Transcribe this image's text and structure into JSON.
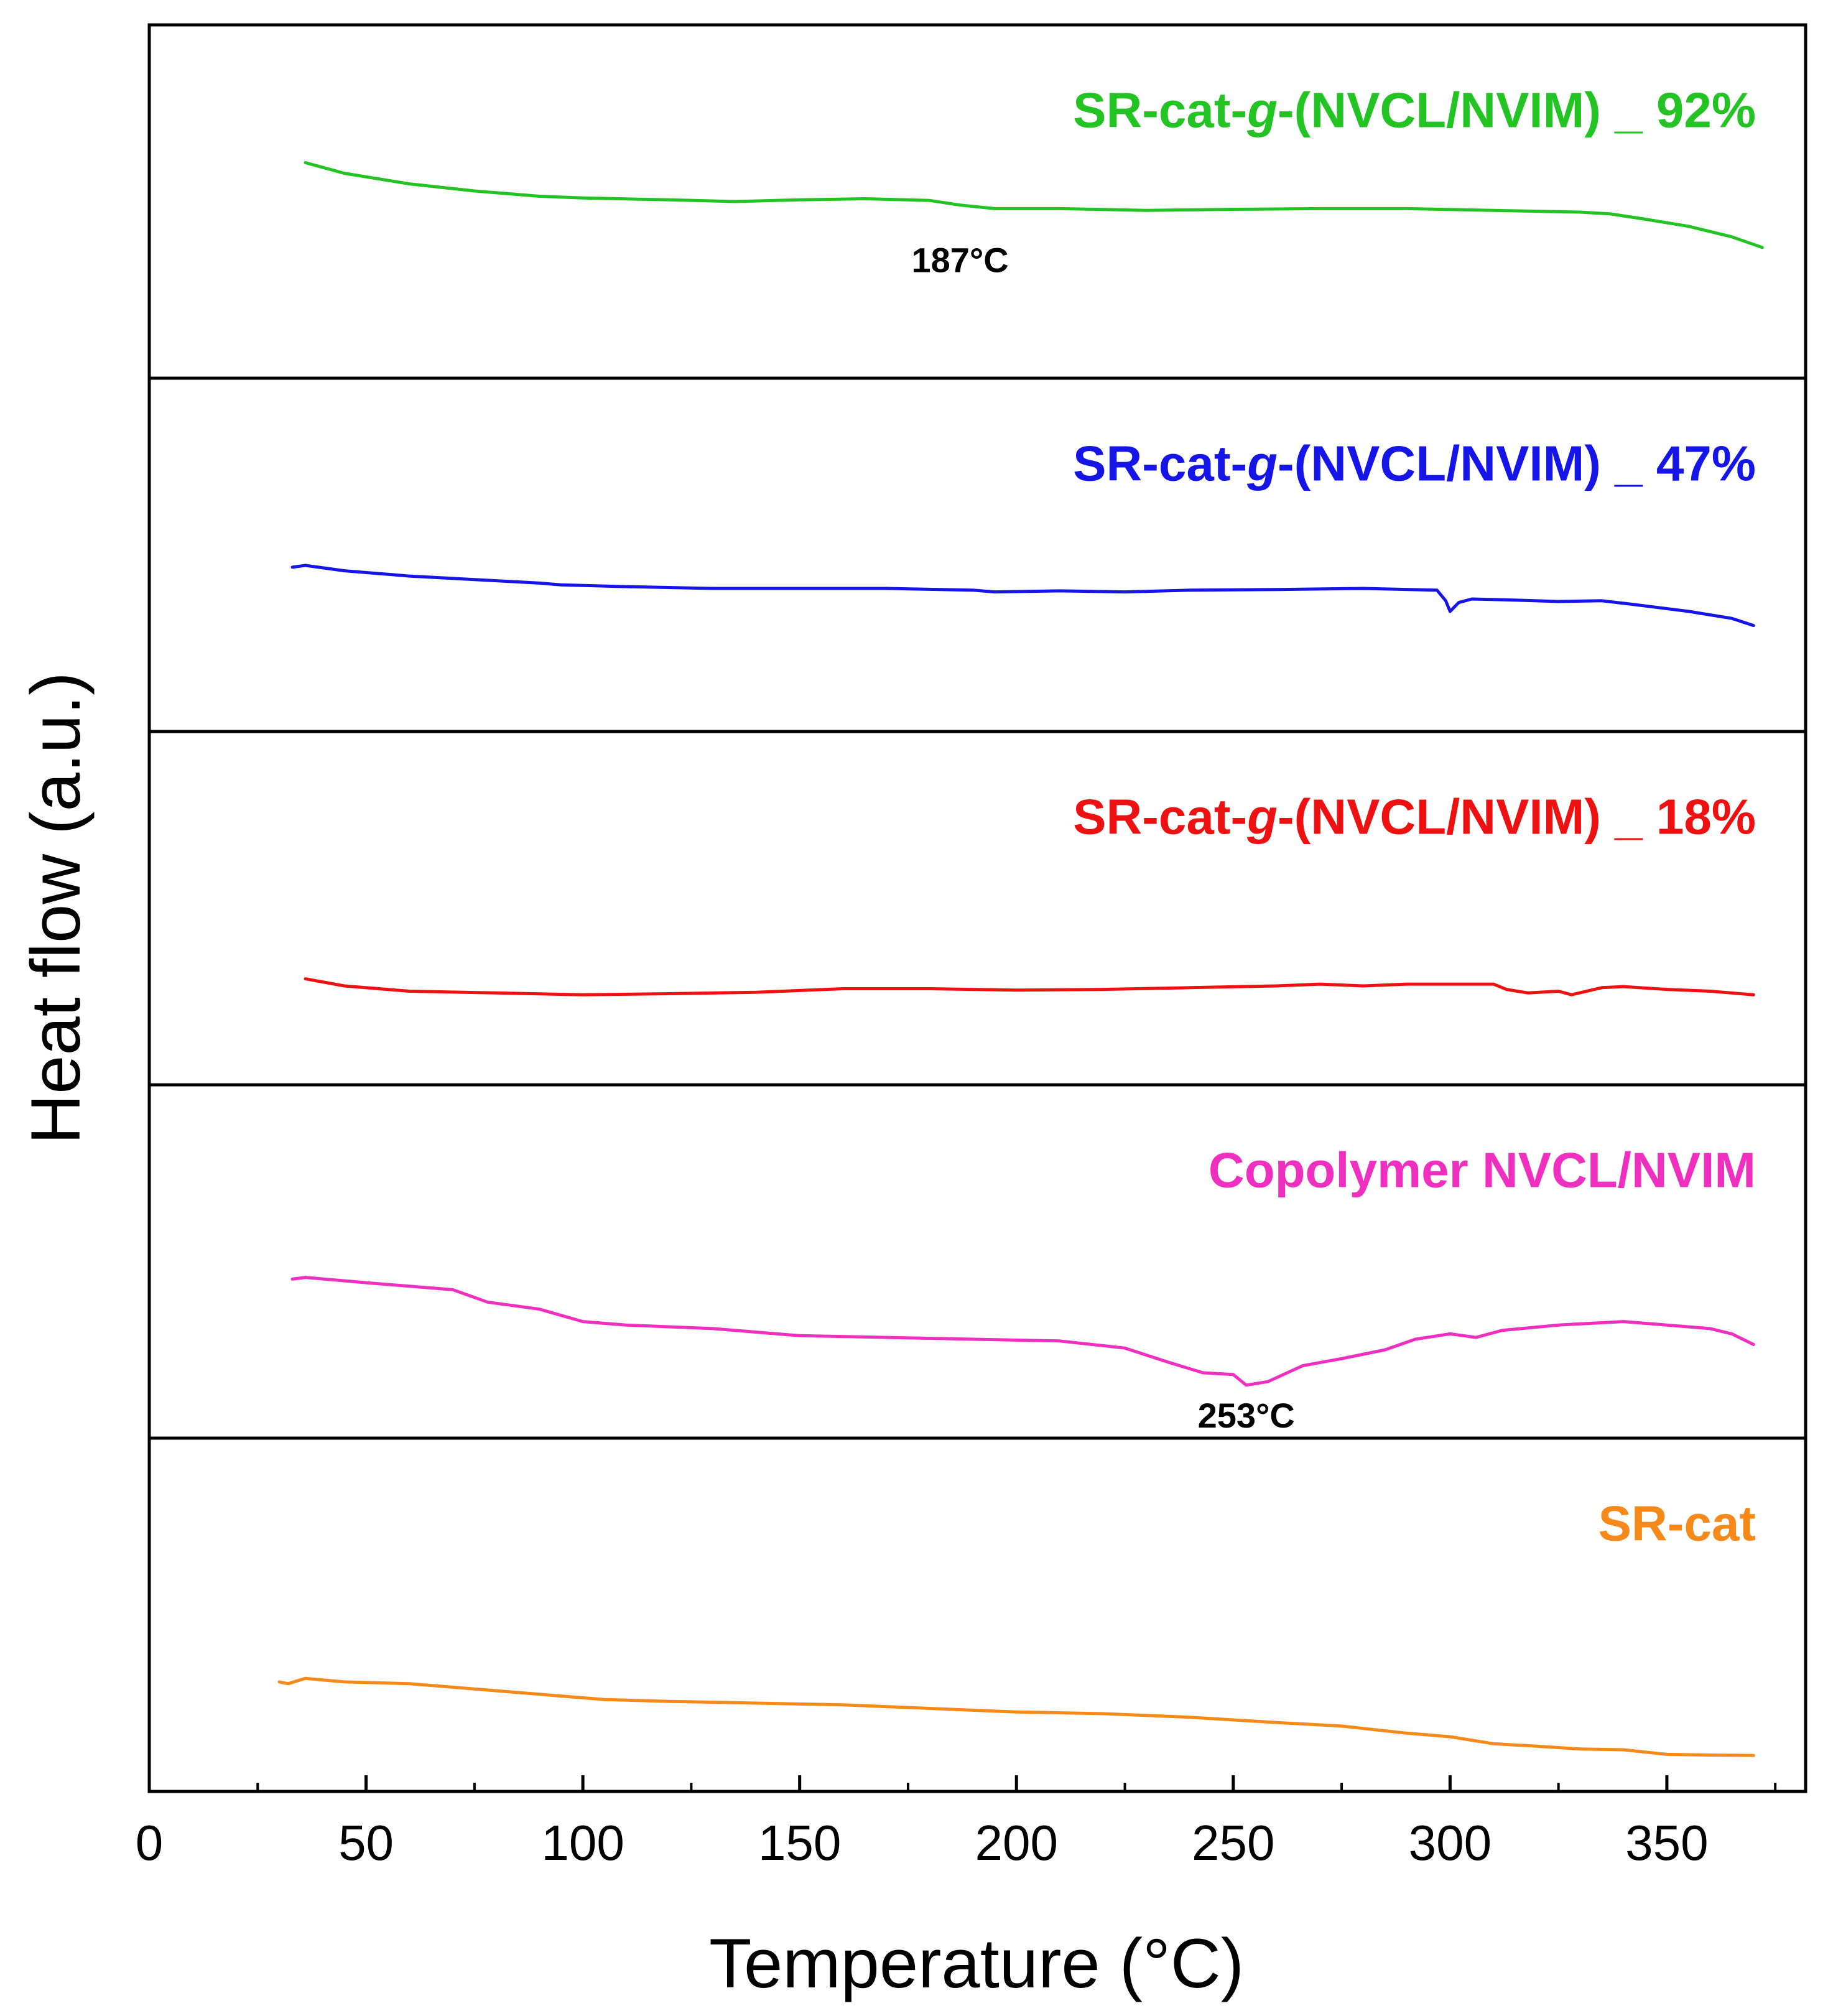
{
  "chart_data": {
    "type": "line",
    "title": "",
    "xlabel": "Temperature (°C)",
    "ylabel": "Heat flow (a.u.)",
    "xlim": [
      0,
      382
    ],
    "x_ticks": [
      0,
      50,
      100,
      150,
      200,
      250,
      300,
      350
    ],
    "x_tick_labels": [
      "0",
      "50",
      "100",
      "150",
      "200",
      "250",
      "300",
      "350"
    ],
    "x_minor_ticks": [
      25,
      75,
      125,
      175,
      225,
      275,
      325,
      375
    ],
    "grid": false,
    "layout": "stacked panels, one series per panel, top to bottom",
    "series": [
      {
        "name": "SR-cat-g-(NVCL/NVIM) _ 92%",
        "label_parts": [
          "SR-cat-",
          "g",
          "-(NVCL/NVIM) _ 92%"
        ],
        "color": "#22c322",
        "ylim": [
          0,
          1
        ],
        "points": [
          [
            36,
            0.61
          ],
          [
            45,
            0.58
          ],
          [
            60,
            0.55
          ],
          [
            75,
            0.53
          ],
          [
            90,
            0.515
          ],
          [
            100,
            0.51
          ],
          [
            120,
            0.505
          ],
          [
            135,
            0.5
          ],
          [
            150,
            0.505
          ],
          [
            165,
            0.508
          ],
          [
            180,
            0.503
          ],
          [
            187,
            0.49
          ],
          [
            195,
            0.48
          ],
          [
            210,
            0.48
          ],
          [
            230,
            0.475
          ],
          [
            250,
            0.478
          ],
          [
            270,
            0.48
          ],
          [
            290,
            0.48
          ],
          [
            310,
            0.475
          ],
          [
            330,
            0.47
          ],
          [
            337,
            0.465
          ],
          [
            345,
            0.45
          ],
          [
            355,
            0.43
          ],
          [
            365,
            0.4
          ],
          [
            372,
            0.37
          ]
        ],
        "annotation": {
          "text": "187°C",
          "x": 187
        }
      },
      {
        "name": "SR-cat-g-(NVCL/NVIM) _ 47%",
        "label_parts": [
          "SR-cat-",
          "g",
          "-(NVCL/NVIM) _ 47%"
        ],
        "color": "#1515e8",
        "ylim": [
          0,
          1
        ],
        "points": [
          [
            33,
            0.465
          ],
          [
            36,
            0.47
          ],
          [
            45,
            0.455
          ],
          [
            60,
            0.44
          ],
          [
            75,
            0.43
          ],
          [
            90,
            0.42
          ],
          [
            95,
            0.415
          ],
          [
            110,
            0.41
          ],
          [
            130,
            0.405
          ],
          [
            150,
            0.405
          ],
          [
            170,
            0.405
          ],
          [
            190,
            0.4
          ],
          [
            195,
            0.395
          ],
          [
            210,
            0.398
          ],
          [
            225,
            0.395
          ],
          [
            240,
            0.4
          ],
          [
            260,
            0.402
          ],
          [
            280,
            0.405
          ],
          [
            297,
            0.4
          ],
          [
            299,
            0.37
          ],
          [
            300,
            0.34
          ],
          [
            302,
            0.365
          ],
          [
            305,
            0.375
          ],
          [
            315,
            0.372
          ],
          [
            325,
            0.368
          ],
          [
            335,
            0.37
          ],
          [
            342,
            0.36
          ],
          [
            355,
            0.34
          ],
          [
            365,
            0.32
          ],
          [
            370,
            0.3
          ]
        ],
        "annotation": null
      },
      {
        "name": "SR-cat-g-(NVCL/NVIM) _ 18%",
        "label_parts": [
          "SR-cat-",
          "g",
          "-(NVCL/NVIM) _ 18%"
        ],
        "color": "#ee1111",
        "ylim": [
          0,
          1
        ],
        "points": [
          [
            36,
            0.3
          ],
          [
            45,
            0.28
          ],
          [
            60,
            0.265
          ],
          [
            80,
            0.26
          ],
          [
            100,
            0.255
          ],
          [
            120,
            0.258
          ],
          [
            140,
            0.262
          ],
          [
            160,
            0.272
          ],
          [
            180,
            0.272
          ],
          [
            200,
            0.268
          ],
          [
            220,
            0.27
          ],
          [
            240,
            0.275
          ],
          [
            260,
            0.28
          ],
          [
            270,
            0.285
          ],
          [
            280,
            0.28
          ],
          [
            290,
            0.285
          ],
          [
            300,
            0.285
          ],
          [
            310,
            0.285
          ],
          [
            313,
            0.27
          ],
          [
            318,
            0.26
          ],
          [
            325,
            0.265
          ],
          [
            328,
            0.255
          ],
          [
            335,
            0.275
          ],
          [
            340,
            0.278
          ],
          [
            350,
            0.27
          ],
          [
            360,
            0.265
          ],
          [
            370,
            0.255
          ]
        ],
        "annotation": null
      },
      {
        "name": "Copolymer NVCL/NVIM",
        "label_parts": [
          "Copolymer NVCL/NVIM"
        ],
        "color": "#ee2fbf",
        "ylim": [
          0,
          1
        ],
        "points": [
          [
            33,
            0.45
          ],
          [
            36,
            0.455
          ],
          [
            50,
            0.44
          ],
          [
            60,
            0.43
          ],
          [
            70,
            0.42
          ],
          [
            78,
            0.385
          ],
          [
            90,
            0.365
          ],
          [
            100,
            0.33
          ],
          [
            110,
            0.32
          ],
          [
            130,
            0.31
          ],
          [
            150,
            0.29
          ],
          [
            170,
            0.285
          ],
          [
            190,
            0.28
          ],
          [
            210,
            0.275
          ],
          [
            225,
            0.255
          ],
          [
            235,
            0.215
          ],
          [
            243,
            0.185
          ],
          [
            250,
            0.18
          ],
          [
            253,
            0.15
          ],
          [
            258,
            0.16
          ],
          [
            266,
            0.205
          ],
          [
            275,
            0.225
          ],
          [
            285,
            0.25
          ],
          [
            292,
            0.28
          ],
          [
            300,
            0.295
          ],
          [
            306,
            0.285
          ],
          [
            312,
            0.305
          ],
          [
            325,
            0.32
          ],
          [
            340,
            0.33
          ],
          [
            350,
            0.32
          ],
          [
            360,
            0.31
          ],
          [
            365,
            0.295
          ],
          [
            370,
            0.265
          ]
        ],
        "annotation": {
          "text": "253°C",
          "x": 253
        }
      },
      {
        "name": "SR-cat",
        "label_parts": [
          "SR-cat"
        ],
        "color": "#f58a1b",
        "ylim": [
          0,
          1
        ],
        "points": [
          [
            30,
            0.31
          ],
          [
            32,
            0.305
          ],
          [
            36,
            0.32
          ],
          [
            45,
            0.31
          ],
          [
            60,
            0.305
          ],
          [
            75,
            0.29
          ],
          [
            90,
            0.275
          ],
          [
            105,
            0.26
          ],
          [
            120,
            0.255
          ],
          [
            140,
            0.25
          ],
          [
            160,
            0.245
          ],
          [
            180,
            0.235
          ],
          [
            200,
            0.225
          ],
          [
            220,
            0.22
          ],
          [
            240,
            0.21
          ],
          [
            260,
            0.195
          ],
          [
            275,
            0.185
          ],
          [
            290,
            0.165
          ],
          [
            300,
            0.155
          ],
          [
            310,
            0.135
          ],
          [
            320,
            0.128
          ],
          [
            330,
            0.12
          ],
          [
            340,
            0.118
          ],
          [
            350,
            0.105
          ],
          [
            360,
            0.103
          ],
          [
            370,
            0.102
          ]
        ],
        "annotation": null
      }
    ]
  }
}
